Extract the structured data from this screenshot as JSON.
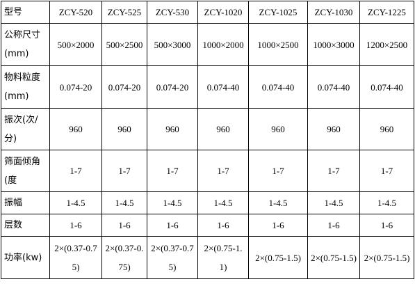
{
  "table": {
    "header": [
      "型号",
      "ZCY-520",
      "ZCY-525",
      "ZCY-530",
      "ZCY-1020",
      "ZCY-1025",
      "ZCY-1030",
      "ZCY-1225"
    ],
    "rows": [
      [
        "公称尺寸(mm)",
        "500×2000",
        "500×2500",
        "500×3000",
        "1000×2000",
        "1000×2500",
        "1000×3000",
        "1200×2500"
      ],
      [
        "物料粒度(mm)",
        "0.074-20",
        "0.074-20",
        "0.074-20",
        "0.074-40",
        "0.074-40",
        "0.074-40",
        "0.074-40"
      ],
      [
        "振次(次/分)",
        "960",
        "960",
        "960",
        "960",
        "960",
        "960",
        "960"
      ],
      [
        "筛面倾角(度",
        "1-7",
        "1-7",
        "1-7",
        "1-7",
        "1-7",
        "1-7",
        "1-7"
      ],
      [
        "振幅",
        "1-4.5",
        "1-4.5",
        "1-4.5",
        "1-4.5",
        "1-4.5",
        "1-4.5",
        "1-4.5"
      ],
      [
        "层数",
        "1-6",
        "1-6",
        "1-6",
        "1-6",
        "1-6",
        "1-6",
        "1-6"
      ],
      [
        "功率(kw)",
        "2×(0.37-0.75)",
        "2×(0.37-0.75)",
        "2×(0.37-0.75)",
        "2×(0.75-1.1)",
        "2×(0.75-1.5)",
        "2×(0.75-1.5)",
        "2×(0.75-1.5)"
      ]
    ]
  }
}
